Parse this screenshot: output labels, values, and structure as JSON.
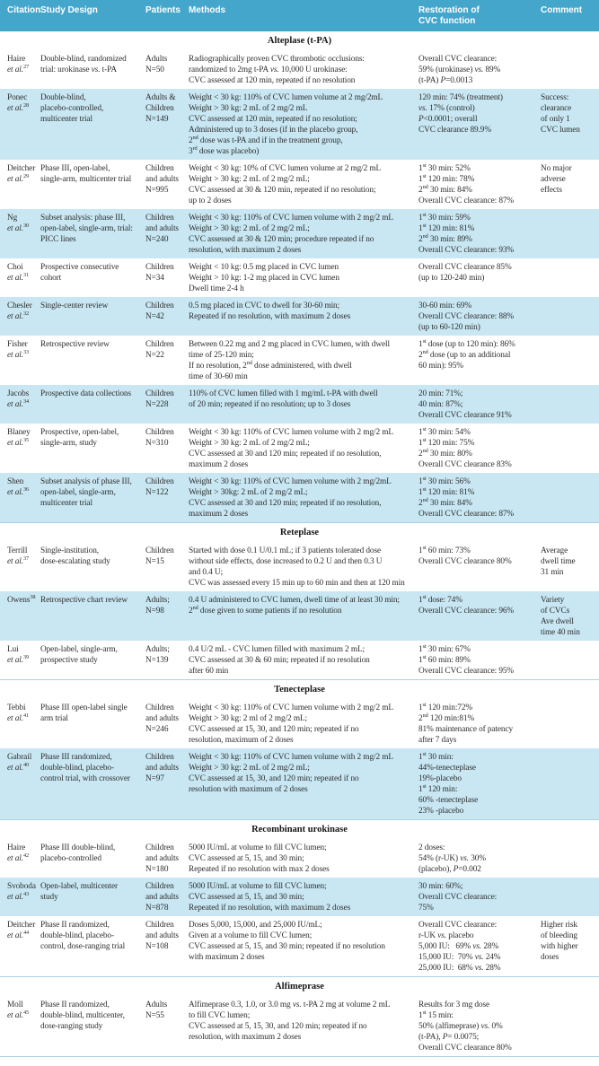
{
  "header": {
    "columns": [
      "Citation",
      "Study Design",
      "Patients",
      "Methods",
      "Restoration of\nCVC function",
      "Comment"
    ]
  },
  "colors": {
    "header_bg": "#45a6cc",
    "row_shaded": "#c8e7f3",
    "rule": "#a9d3e4"
  },
  "sections": [
    {
      "title": "Alteplase (t-PA)",
      "rows": [
        {
          "citation": {
            "name": "Haire",
            "etal": true,
            "ref": "27"
          },
          "shaded": false,
          "design": "Double-blind, randomized\ntrial: urokinase vs. t-PA",
          "patients": "Adults\nN=50",
          "methods": "Radiographically proven CVC thrombotic occlusions:\nrandomized to 2mg t-PA vs. 10,000 U urokinase:\nCVC assessed at 120 min, repeated if no resolution",
          "restoration": "Overall CVC clearance:\n59% (urokinase) vs. 89%\n(t-PA) P=0.0013",
          "comment": ""
        },
        {
          "citation": {
            "name": "Ponec",
            "etal": true,
            "ref": "28"
          },
          "shaded": true,
          "design": "Double-blind,\nplacebo-controlled,\nmulticenter trial",
          "patients": "Adults &\nChildren\nN=149",
          "methods": "Weight < 30 kg: 110% of CVC lumen volume at 2 mg/2mL\nWeight > 30 kg: 2 mL of 2 mg/2 mL\nCVC assessed at 120 min, repeated if no resolution;\nAdministered up to 3 doses (if in the placebo group,\n2nd dose was t-PA and if in the treatment group,\n3rd dose was placebo)",
          "restoration": "120 min: 74% (treatment)\nvs. 17% (control)\nP<0.0001; overall\nCVC clearance 89.9%",
          "comment": "Success:\nclearance\nof only 1\nCVC lumen"
        },
        {
          "citation": {
            "name": "Deitcher",
            "etal": true,
            "ref": "29"
          },
          "shaded": false,
          "design": "Phase III, open-label,\nsingle-arm, multicenter trial",
          "patients": "Children\nand adults\nN=995",
          "methods": "Weight < 30 kg: 10% of CVC lumen volume at 2 mg/2 mL\nWeight > 30 kg: 2 mL of 2 mg/2 mL;\nCVC assessed at 30 & 120 min, repeated if no resolution;\nup to 2 doses",
          "restoration": "1st 30 min: 52%\n1st 120 min: 78%\n2nd 30 min: 84%\nOverall CVC clearance: 87%",
          "comment": "No major\nadverse\neffects"
        },
        {
          "citation": {
            "name": "Ng",
            "etal": true,
            "ref": "30"
          },
          "shaded": true,
          "design": "Subset analysis: phase III,\nopen-label, single-arm, trial:\nPICC lines",
          "patients": "Children\nand adults\nN=240",
          "methods": "Weight < 30 kg: 110% of CVC lumen volume with 2 mg/2 mL\nWeight > 30 kg: 2 mL of 2 mg/2 mL;\nCVC assessed at 30 & 120 min; procedure repeated if no\nresolution, with maximum 2 doses",
          "restoration": "1st 30 min: 59%\n1st 120 min: 81%\n2nd 30 min: 89%\nOverall CVC clearance: 93%",
          "comment": ""
        },
        {
          "citation": {
            "name": "Choi",
            "etal": true,
            "ref": "31"
          },
          "shaded": false,
          "design": "Prospective consecutive\ncohort",
          "patients": "Children\nN=34",
          "methods": "Weight < 10 kg: 0.5 mg placed in CVC lumen\nWeight > 10 kg: 1-2 mg placed in CVC lumen\nDwell time 2-4 h",
          "restoration": "Overall CVC clearance 85%\n(up to 120-240 min)",
          "comment": ""
        },
        {
          "citation": {
            "name": "Chesler",
            "etal": true,
            "ref": "32"
          },
          "shaded": true,
          "design": "Single-center review",
          "patients": "Children\nN=42",
          "methods": "0.5 mg placed in CVC to dwell for 30-60 min;\nRepeated if no resolution, with maximum 2 doses",
          "restoration": "30-60 min: 69%\nOverall CVC clearance: 88%\n(up to 60-120 min)",
          "comment": ""
        },
        {
          "citation": {
            "name": "Fisher",
            "etal": true,
            "ref": "33"
          },
          "shaded": false,
          "design": "Retrospective review",
          "patients": "Children\nN=22",
          "methods": "Between 0.22 mg and 2 mg placed in CVC lumen, with dwell\ntime of 25-120 min;\nIf no resolution, 2nd dose administered, with dwell\ntime of 30-60 min",
          "restoration": "1st dose (up to 120 min): 86%\n2nd dose (up to an additional\n60 min): 95%",
          "comment": ""
        },
        {
          "citation": {
            "name": "Jacobs",
            "etal": true,
            "ref": "34"
          },
          "shaded": true,
          "design": "Prospective data collections",
          "patients": "Children\nN=228",
          "methods": "110% of CVC lumen filled with 1 mg/mL t-PA with dwell\nof 20 min; repeated if no resolution; up to 3 doses",
          "restoration": "20 min: 71%;\n40 min: 87%;\nOverall CVC clearance 91%",
          "comment": ""
        },
        {
          "citation": {
            "name": "Blaney",
            "etal": true,
            "ref": "35"
          },
          "shaded": false,
          "design": "Prospective, open-label,\nsingle-arm, study",
          "patients": "Children\nN=310",
          "methods": "Weight < 30 kg: 110% of CVC lumen volume with 2 mg/2 mL\nWeight > 30 kg: 2 mL of 2 mg/2 mL;\nCVC assessed at 30 and 120 min; repeated if no resolution,\nmaximum 2 doses",
          "restoration": "1st 30 min: 54%\n1st 120 min: 75%\n2nd 30 min: 80%\nOverall CVC clearance 83%",
          "comment": ""
        },
        {
          "citation": {
            "name": "Shen",
            "etal": true,
            "ref": "36"
          },
          "shaded": true,
          "design": "Subset analysis of phase III,\nopen-label, single-arm,\nmulticenter trial",
          "patients": "Children\nN=122",
          "methods": "Weight < 30 kg: 110% of CVC lumen volume with 2 mg/2mL\nWeight > 30kg: 2 mL of 2 mg/2 mL;\nCVC assessed at 30 and 120 min; repeated if no resolution,\nmaximum 2 doses",
          "restoration": "1st 30 min: 56%\n1st 120 min: 81%\n2nd 30 min: 84%\nOverall CVC clearance: 87%",
          "comment": ""
        }
      ]
    },
    {
      "title": "Reteplase",
      "rows": [
        {
          "citation": {
            "name": "Terrill",
            "etal": true,
            "ref": "37"
          },
          "shaded": false,
          "design": "Single-institution,\ndose-escalating study",
          "patients": "Children\nN=15",
          "methods": "Started with dose 0.1 U/0.1 mL; if 3 patients tolerated dose\nwithout side effects, dose increased to 0.2 U and then 0.3 U\nand 0.4 U;\nCVC was assessed every 15 min up to 60 min and then at 120 min",
          "restoration": "1st 60 min: 73%\nOverall CVC clearance 80%",
          "comment": "Average\ndwell time\n31 min"
        },
        {
          "citation": {
            "name": "Owens",
            "etal": false,
            "ref": "38"
          },
          "shaded": true,
          "design": "Retrospective chart review",
          "patients": "Adults;\nN=98",
          "methods": "0.4 U administered to CVC lumen, dwell time of at least 30 min;\n2nd dose given to some patients if no resolution",
          "restoration": "1st dose: 74%\nOverall CVC clearance: 96%",
          "comment": "Variety\nof CVCs\nAve dwell\ntime 40 min"
        },
        {
          "citation": {
            "name": "Lui",
            "etal": true,
            "ref": "39"
          },
          "shaded": false,
          "design": "Open-label, single-arm,\nprospective study",
          "patients": "Adults;\nN=139",
          "methods": "0.4 U/2 mL - CVC lumen filled with maximum 2 mL;\nCVC assessed at 30 & 60 min; repeated if no resolution\nafter 60 min",
          "restoration": "1st 30 min: 67%\n1st 60 min: 89%\nOverall CVC clearance: 95%",
          "comment": ""
        }
      ]
    },
    {
      "title": "Tenecteplase",
      "rows": [
        {
          "citation": {
            "name": "Tebbi",
            "etal": true,
            "ref": "41"
          },
          "shaded": false,
          "design": "Phase III open-label single\narm trial",
          "patients": "Children\nand adults\nN=246",
          "methods": "Weight < 30 kg: 110% of CVC lumen volume with 2 mg/2 mL\nWeight > 30 kg: 2 ml of 2 mg/2 mL;\nCVC assessed at 15, 30, and 120 min; repeated if no\nresolution, maximum of 2 doses",
          "restoration": "1st 120 min:72%\n2nd 120 min:81%\n81% maintenance of patency\nafter 7 days",
          "comment": ""
        },
        {
          "citation": {
            "name": "Gabrail",
            "etal": true,
            "ref": "40"
          },
          "shaded": true,
          "design": "Phase III randomized,\ndouble-blind, placebo-\ncontrol trial, with crossover",
          "patients": "Children\nand adults\nN=97",
          "methods": "Weight < 30 kg: 110% of CVC lumen volume with 2 mg/2 mL\nWeight > 30 kg: 2 mL of 2 mg/2 mL;\nCVC assessed at 15, 30, and 120 min; repeated if no\nresolution with maximum of 2 doses",
          "restoration": "1st 30 min:\n44%-tenecteplase\n19%-placebo\n1st 120 min:\n60% -tenecteplase\n23% -placebo",
          "comment": ""
        }
      ]
    },
    {
      "title": "Recombinant urokinase",
      "rows": [
        {
          "citation": {
            "name": "Haire",
            "etal": true,
            "ref": "42"
          },
          "shaded": false,
          "design": "Phase III double-blind,\nplacebo-controlled",
          "patients": "Children\nand adults\nN=180",
          "methods": "5000 IU/mL at volume to fill CVC lumen;\nCVC assessed at 5, 15, and 30 min;\nRepeated if no resolution with max 2 doses",
          "restoration": "2 doses:\n54% (r-UK) vs. 30%\n(placebo), P=0.002",
          "comment": ""
        },
        {
          "citation": {
            "name": "Svoboda",
            "etal": true,
            "ref": "43"
          },
          "shaded": true,
          "design": "Open-label, multicenter\nstudy",
          "patients": "Children\nand adults\nN=878",
          "methods": "5000 IU/mL at volume to fill CVC lumen;\nCVC assessed at 5, 15, and 30 min;\nRepeated if no resolution, with maximum 2 doses",
          "restoration": "30 min: 60%;\nOverall CVC clearance:\n75%",
          "comment": ""
        },
        {
          "citation": {
            "name": "Deitcher",
            "etal": true,
            "ref": "44"
          },
          "shaded": false,
          "design": "Phase II randomized,\ndouble-blind, placebo-\ncontrol, dose-ranging trial",
          "patients": "Children\nand adults\nN=108",
          "methods": "Doses 5,000, 15,000, and 25,000 IU/mL;\nGiven at a volume to fill CVC lumen;\nCVC assessed at 5, 15, and 30 min; repeated if no resolution\nwith maximum 2 doses",
          "restoration": "Overall CVC clearance:\nr-UK vs. placebo\n5,000 IU:   69% vs. 28%\n15,000 IU:  70% vs. 24%\n25,000 IU:  68% vs. 28%",
          "comment": "Higher risk\nof bleeding\nwith higher\ndoses"
        }
      ]
    },
    {
      "title": "Alfimeprase",
      "rows": [
        {
          "citation": {
            "name": "Moll",
            "etal": true,
            "ref": "45"
          },
          "shaded": false,
          "design": "Phase II randomized,\ndouble-blind, multicenter,\ndose-ranging study",
          "patients": "Adults\nN=55",
          "methods": "Alfimeprase 0.3, 1.0, or 3.0 mg vs. t-PA 2 mg at volume 2 mL\nto fill CVC lumen;\nCVC assessed at 5, 15, 30, and 120 min; repeated if no\nresolution, with maximum 2 doses",
          "restoration": "Results for 3 mg dose\n1st 15 min:\n50% (alfimeprase) vs. 0%\n(t-PA), P= 0.0075;\nOverall CVC clearance 80%",
          "comment": ""
        }
      ]
    }
  ]
}
